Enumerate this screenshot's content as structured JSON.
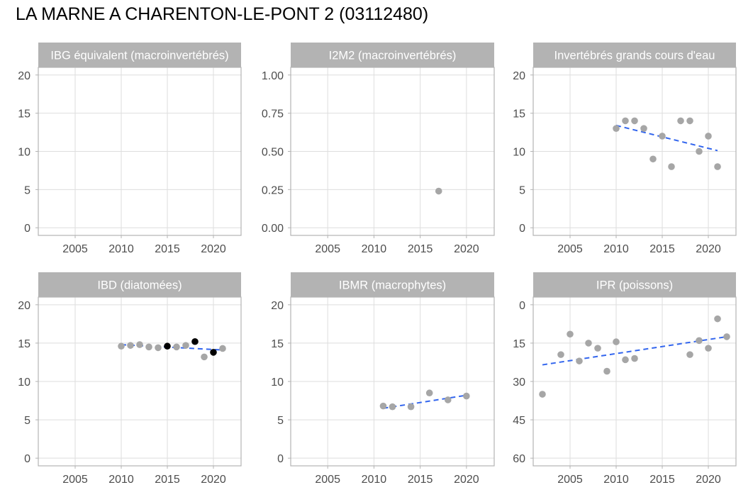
{
  "title": "LA MARNE A CHARENTON-LE-PONT 2 (03112480)",
  "colors": {
    "strip": "#b3b3b3",
    "grid": "#dedede",
    "border": "#b3b3b3",
    "point": "#a6a6a6",
    "highlight": "#000000",
    "trend": "#3366ee"
  },
  "chart_data": [
    {
      "type": "scatter",
      "title": "IBG équivalent (macroinvertébrés)",
      "x_ticks": [
        2005,
        2010,
        2015,
        2020
      ],
      "y_ticks": [
        0,
        5,
        10,
        15,
        20
      ],
      "y_tick_labels": [
        "0",
        "5",
        "10",
        "15",
        "20"
      ],
      "xlim": [
        2001,
        2023
      ],
      "ylim": [
        -1,
        21
      ],
      "y_reversed": false,
      "points": [],
      "trend": null
    },
    {
      "type": "scatter",
      "title": "I2M2 (macroinvertébrés)",
      "x_ticks": [
        2005,
        2010,
        2015,
        2020
      ],
      "y_ticks": [
        0,
        0.25,
        0.5,
        0.75,
        1
      ],
      "y_tick_labels": [
        "0.00",
        "0.25",
        "0.50",
        "0.75",
        "1.00"
      ],
      "xlim": [
        2001,
        2023
      ],
      "ylim": [
        -0.05,
        1.05
      ],
      "y_reversed": false,
      "points": [
        {
          "x": 2017,
          "y": 0.24,
          "highlight": false
        }
      ],
      "trend": null
    },
    {
      "type": "scatter",
      "title": "Invertébrés grands cours d'eau",
      "x_ticks": [
        2005,
        2010,
        2015,
        2020
      ],
      "y_ticks": [
        0,
        5,
        10,
        15,
        20
      ],
      "y_tick_labels": [
        "0",
        "5",
        "10",
        "15",
        "20"
      ],
      "xlim": [
        2001,
        2023
      ],
      "ylim": [
        -1,
        21
      ],
      "y_reversed": false,
      "points": [
        {
          "x": 2010,
          "y": 13,
          "highlight": false
        },
        {
          "x": 2011,
          "y": 14,
          "highlight": false
        },
        {
          "x": 2012,
          "y": 14,
          "highlight": false
        },
        {
          "x": 2013,
          "y": 13,
          "highlight": false
        },
        {
          "x": 2014,
          "y": 9,
          "highlight": false
        },
        {
          "x": 2015,
          "y": 12,
          "highlight": false
        },
        {
          "x": 2016,
          "y": 8,
          "highlight": false
        },
        {
          "x": 2017,
          "y": 14,
          "highlight": false
        },
        {
          "x": 2018,
          "y": 14,
          "highlight": false
        },
        {
          "x": 2019,
          "y": 10,
          "highlight": false
        },
        {
          "x": 2020,
          "y": 12,
          "highlight": false
        },
        {
          "x": 2021,
          "y": 8,
          "highlight": false
        }
      ],
      "trend": {
        "x": [
          2010,
          2021
        ],
        "y": [
          13.4,
          10.1
        ]
      }
    },
    {
      "type": "scatter",
      "title": "IBD (diatomées)",
      "x_ticks": [
        2005,
        2010,
        2015,
        2020
      ],
      "y_ticks": [
        0,
        5,
        10,
        15,
        20
      ],
      "y_tick_labels": [
        "0",
        "5",
        "10",
        "15",
        "20"
      ],
      "xlim": [
        2001,
        2023
      ],
      "ylim": [
        -1,
        21
      ],
      "y_reversed": false,
      "points": [
        {
          "x": 2010,
          "y": 14.6,
          "highlight": false
        },
        {
          "x": 2011,
          "y": 14.7,
          "highlight": false
        },
        {
          "x": 2012,
          "y": 14.8,
          "highlight": false
        },
        {
          "x": 2013,
          "y": 14.5,
          "highlight": false
        },
        {
          "x": 2014,
          "y": 14.4,
          "highlight": false
        },
        {
          "x": 2015,
          "y": 14.6,
          "highlight": true
        },
        {
          "x": 2016,
          "y": 14.5,
          "highlight": false
        },
        {
          "x": 2017,
          "y": 14.7,
          "highlight": false
        },
        {
          "x": 2018,
          "y": 15.2,
          "highlight": true
        },
        {
          "x": 2019,
          "y": 13.2,
          "highlight": false
        },
        {
          "x": 2020,
          "y": 13.8,
          "highlight": true
        },
        {
          "x": 2021,
          "y": 14.3,
          "highlight": false
        }
      ],
      "trend": {
        "x": [
          2010,
          2021
        ],
        "y": [
          14.8,
          14.1
        ]
      }
    },
    {
      "type": "scatter",
      "title": "IBMR (macrophytes)",
      "x_ticks": [
        2005,
        2010,
        2015,
        2020
      ],
      "y_ticks": [
        0,
        5,
        10,
        15,
        20
      ],
      "y_tick_labels": [
        "0",
        "5",
        "10",
        "15",
        "20"
      ],
      "xlim": [
        2001,
        2023
      ],
      "ylim": [
        -1,
        21
      ],
      "y_reversed": false,
      "points": [
        {
          "x": 2011,
          "y": 6.8,
          "highlight": false
        },
        {
          "x": 2012,
          "y": 6.7,
          "highlight": false
        },
        {
          "x": 2014,
          "y": 6.7,
          "highlight": false
        },
        {
          "x": 2016,
          "y": 8.5,
          "highlight": false
        },
        {
          "x": 2018,
          "y": 7.6,
          "highlight": false
        },
        {
          "x": 2020,
          "y": 8.1,
          "highlight": false
        }
      ],
      "trend": {
        "x": [
          2011,
          2020
        ],
        "y": [
          6.5,
          8.2
        ]
      }
    },
    {
      "type": "scatter",
      "title": "IPR (poissons)",
      "x_ticks": [
        2005,
        2010,
        2015,
        2020
      ],
      "y_ticks": [
        0,
        15,
        30,
        45,
        60
      ],
      "y_tick_labels": [
        "0",
        "15",
        "30",
        "45",
        "60"
      ],
      "xlim": [
        2001,
        2023
      ],
      "ylim": [
        -3,
        63
      ],
      "y_reversed": true,
      "points": [
        {
          "x": 2002,
          "y": 35,
          "highlight": false
        },
        {
          "x": 2004,
          "y": 19.5,
          "highlight": false
        },
        {
          "x": 2005,
          "y": 11.5,
          "highlight": false
        },
        {
          "x": 2006,
          "y": 22,
          "highlight": false
        },
        {
          "x": 2007,
          "y": 15,
          "highlight": false
        },
        {
          "x": 2008,
          "y": 17,
          "highlight": false
        },
        {
          "x": 2009,
          "y": 26,
          "highlight": false
        },
        {
          "x": 2010,
          "y": 14.5,
          "highlight": false
        },
        {
          "x": 2011,
          "y": 21.5,
          "highlight": false
        },
        {
          "x": 2012,
          "y": 21,
          "highlight": false
        },
        {
          "x": 2018,
          "y": 19.5,
          "highlight": false
        },
        {
          "x": 2019,
          "y": 14,
          "highlight": false
        },
        {
          "x": 2020,
          "y": 17,
          "highlight": false
        },
        {
          "x": 2021,
          "y": 5.5,
          "highlight": false
        },
        {
          "x": 2022,
          "y": 12.5,
          "highlight": false
        }
      ],
      "trend": {
        "x": [
          2002,
          2022
        ],
        "y": [
          23.5,
          12.5
        ]
      }
    }
  ]
}
